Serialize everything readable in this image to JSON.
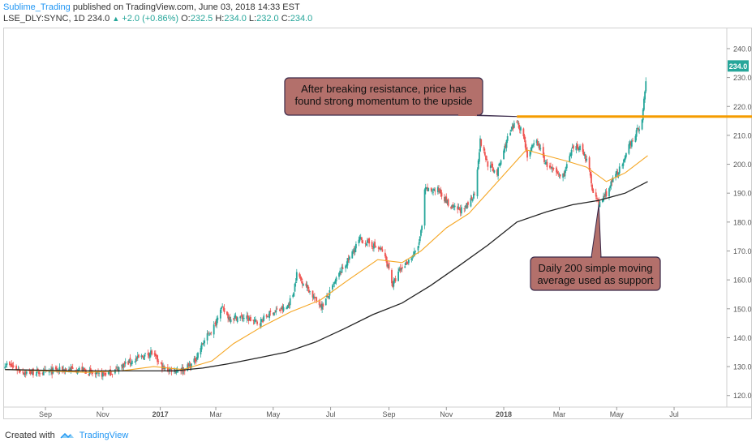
{
  "header": {
    "author": "Sublime_Trading",
    "published_text": "published on TradingView.com, June 03, 2018 14:33 EST",
    "symbol": "LSE_DLY:SYNC, 1D",
    "last": "234.0",
    "change": "+2.0 (+0.86%)",
    "o_label": "O:",
    "o_value": "232.5",
    "h_label": "H:",
    "h_value": "234.0",
    "l_label": "L:",
    "l_value": "232.0",
    "c_label": "C:",
    "c_value": "234.0"
  },
  "footer": {
    "created_with": "Created with",
    "brand": "TradingView"
  },
  "colors": {
    "up": "#26a69a",
    "down": "#ef5350",
    "ma_fast": "#f5a623",
    "ma_slow": "#222222",
    "resistance": "#f59c00",
    "callout_fill": "#b3706b",
    "callout_border": "#3a2a4a",
    "price_tag": "#26a69a"
  },
  "chart_data": {
    "type": "candlestick",
    "x_ticks": [
      "Sep",
      "Nov",
      "2017",
      "Mar",
      "May",
      "Jul",
      "Sep",
      "Nov",
      "2018",
      "Mar",
      "May",
      "Jul"
    ],
    "y_ticks": [
      120.0,
      130.0,
      140.0,
      150.0,
      160.0,
      170.0,
      180.0,
      190.0,
      200.0,
      210.0,
      220.0,
      230.0,
      240.0
    ],
    "ylim": [
      116,
      247
    ],
    "last_price_label": "234.0",
    "price_path": [
      [
        "2016-07-20",
        131
      ],
      [
        "2016-08-10",
        128
      ],
      [
        "2016-09-01",
        128
      ],
      [
        "2016-09-20",
        129
      ],
      [
        "2016-10-10",
        129
      ],
      [
        "2016-10-25",
        127
      ],
      [
        "2016-11-10",
        128
      ],
      [
        "2016-11-25",
        131
      ],
      [
        "2016-12-10",
        133
      ],
      [
        "2016-12-22",
        135
      ],
      [
        "2017-01-05",
        129
      ],
      [
        "2017-01-25",
        129
      ],
      [
        "2017-02-05",
        131
      ],
      [
        "2017-02-15",
        138
      ],
      [
        "2017-03-01",
        145
      ],
      [
        "2017-03-05",
        151
      ],
      [
        "2017-03-15",
        147
      ],
      [
        "2017-04-01",
        147
      ],
      [
        "2017-04-15",
        145
      ],
      [
        "2017-04-30",
        149
      ],
      [
        "2017-05-15",
        150
      ],
      [
        "2017-05-22",
        155
      ],
      [
        "2017-05-26",
        162
      ],
      [
        "2017-06-05",
        158
      ],
      [
        "2017-06-15",
        153
      ],
      [
        "2017-06-22",
        151
      ],
      [
        "2017-07-01",
        156
      ],
      [
        "2017-07-10",
        162
      ],
      [
        "2017-07-20",
        167
      ],
      [
        "2017-08-01",
        174
      ],
      [
        "2017-08-15",
        172
      ],
      [
        "2017-08-25",
        170
      ],
      [
        "2017-09-01",
        164
      ],
      [
        "2017-09-05",
        158
      ],
      [
        "2017-09-12",
        163
      ],
      [
        "2017-09-25",
        168
      ],
      [
        "2017-10-01",
        170
      ],
      [
        "2017-10-06",
        178
      ],
      [
        "2017-10-09",
        191
      ],
      [
        "2017-10-25",
        191
      ],
      [
        "2017-11-05",
        185
      ],
      [
        "2017-11-20",
        184
      ],
      [
        "2017-12-01",
        190
      ],
      [
        "2017-12-07",
        208
      ],
      [
        "2017-12-15",
        200
      ],
      [
        "2017-12-25",
        197
      ],
      [
        "2018-01-05",
        209
      ],
      [
        "2018-01-15",
        215
      ],
      [
        "2018-01-22",
        210
      ],
      [
        "2018-01-26",
        203
      ],
      [
        "2018-02-05",
        208
      ],
      [
        "2018-02-15",
        200
      ],
      [
        "2018-02-25",
        197
      ],
      [
        "2018-03-05",
        196
      ],
      [
        "2018-03-15",
        205
      ],
      [
        "2018-03-25",
        206
      ],
      [
        "2018-04-01",
        199
      ],
      [
        "2018-04-05",
        192
      ],
      [
        "2018-04-12",
        186
      ],
      [
        "2018-04-20",
        190
      ],
      [
        "2018-05-01",
        197
      ],
      [
        "2018-05-08",
        200
      ],
      [
        "2018-05-15",
        207
      ],
      [
        "2018-05-22",
        211
      ],
      [
        "2018-05-28",
        215
      ],
      [
        "2018-06-01",
        229
      ],
      [
        "2018-06-03",
        234
      ]
    ],
    "series": [
      {
        "name": "fast moving average",
        "points": [
          [
            "2016-07-20",
            129
          ],
          [
            "2016-09-01",
            128.5
          ],
          [
            "2016-10-15",
            128
          ],
          [
            "2016-11-20",
            128.5
          ],
          [
            "2016-12-25",
            130
          ],
          [
            "2017-01-25",
            129
          ],
          [
            "2017-02-25",
            132
          ],
          [
            "2017-03-20",
            138
          ],
          [
            "2017-04-20",
            144
          ],
          [
            "2017-05-20",
            149
          ],
          [
            "2017-06-20",
            153
          ],
          [
            "2017-07-20",
            160
          ],
          [
            "2017-08-20",
            167
          ],
          [
            "2017-09-15",
            166
          ],
          [
            "2017-10-05",
            170
          ],
          [
            "2017-11-01",
            178
          ],
          [
            "2017-11-25",
            183
          ],
          [
            "2017-12-20",
            192
          ],
          [
            "2018-01-25",
            205
          ],
          [
            "2018-02-15",
            203
          ],
          [
            "2018-03-10",
            201
          ],
          [
            "2018-03-30",
            199
          ],
          [
            "2018-04-20",
            194
          ],
          [
            "2018-05-10",
            197
          ],
          [
            "2018-06-03",
            203
          ]
        ]
      },
      {
        "name": "Daily 200 simple moving average",
        "points": [
          [
            "2016-07-20",
            129
          ],
          [
            "2016-10-01",
            128.5
          ],
          [
            "2016-12-01",
            128.5
          ],
          [
            "2017-01-15",
            128.5
          ],
          [
            "2017-02-15",
            129.5
          ],
          [
            "2017-03-15",
            131
          ],
          [
            "2017-04-15",
            133
          ],
          [
            "2017-05-15",
            135
          ],
          [
            "2017-06-15",
            138.5
          ],
          [
            "2017-07-15",
            143
          ],
          [
            "2017-08-15",
            148
          ],
          [
            "2017-09-15",
            152
          ],
          [
            "2017-10-15",
            158
          ],
          [
            "2017-11-15",
            165
          ],
          [
            "2017-12-15",
            172
          ],
          [
            "2018-01-15",
            180
          ],
          [
            "2018-02-15",
            183.5
          ],
          [
            "2018-03-15",
            186
          ],
          [
            "2018-04-12",
            187.5
          ],
          [
            "2018-05-10",
            190
          ],
          [
            "2018-06-03",
            194
          ]
        ]
      }
    ],
    "resistance_level": 216.5,
    "resistance_start": "2018-01-15",
    "annotations": [
      {
        "text": [
          "After breaking resistance, price has",
          "found strong momentum to the upside"
        ],
        "target": [
          "2018-01-15",
          216.5
        ]
      },
      {
        "text": [
          "Daily 200 simple moving",
          "average used as support"
        ],
        "target": [
          "2018-04-12",
          186
        ]
      }
    ]
  }
}
